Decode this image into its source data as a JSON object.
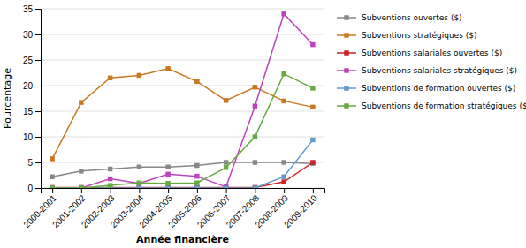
{
  "chart_data": {
    "type": "line",
    "categories": [
      "2000-2001",
      "2001-2002",
      "2002-2003",
      "2003-2004",
      "2004-2005",
      "2005-2006",
      "2006-2007",
      "2007-2008",
      "2008-2009",
      "2009-2010"
    ],
    "series": [
      {
        "name": "Subventions ouvertes ($)",
        "color": "#888888",
        "marker": "square",
        "values": [
          2.2,
          3.3,
          3.7,
          4.1,
          4.1,
          4.4,
          5.0,
          5.0,
          5.0,
          4.8
        ]
      },
      {
        "name": "Subventions stratégiques ($)",
        "color": "#c87820",
        "marker": "square",
        "values": [
          5.7,
          16.7,
          21.5,
          22.0,
          23.3,
          20.8,
          17.1,
          19.7,
          17.0,
          15.8
        ]
      },
      {
        "name": "Subventions salariales ouvertes ($)",
        "color": "#cc2222",
        "marker": "square",
        "values": [
          0.1,
          0.1,
          0.1,
          0.1,
          0.1,
          0.1,
          0.1,
          0.1,
          1.2,
          5.0
        ]
      },
      {
        "name": "Subventions salariales stratégiques ($)",
        "color": "#bb44bb",
        "marker": "square",
        "values": [
          0.0,
          0.0,
          1.8,
          0.9,
          2.7,
          2.3,
          0.2,
          16.0,
          34.0,
          28.0
        ]
      },
      {
        "name": "Subventions de formation ouvertes ($)",
        "color": "#6699cc",
        "marker": "square",
        "values": [
          0.0,
          0.0,
          0.0,
          0.0,
          0.0,
          0.0,
          0.0,
          0.0,
          2.2,
          9.4
        ]
      },
      {
        "name": "Subventions de formation stratégiques ($)",
        "color": "#66aa44",
        "marker": "square",
        "values": [
          0.0,
          0.0,
          0.5,
          1.0,
          0.9,
          1.0,
          4.0,
          10.0,
          22.3,
          19.5
        ]
      }
    ],
    "xlabel": "Année financière",
    "ylabel": "Pourcentage",
    "ylim": [
      0,
      35
    ],
    "yticks": [
      0,
      5,
      10,
      15,
      20,
      25,
      30,
      35
    ],
    "grid": true,
    "legend": "right"
  }
}
